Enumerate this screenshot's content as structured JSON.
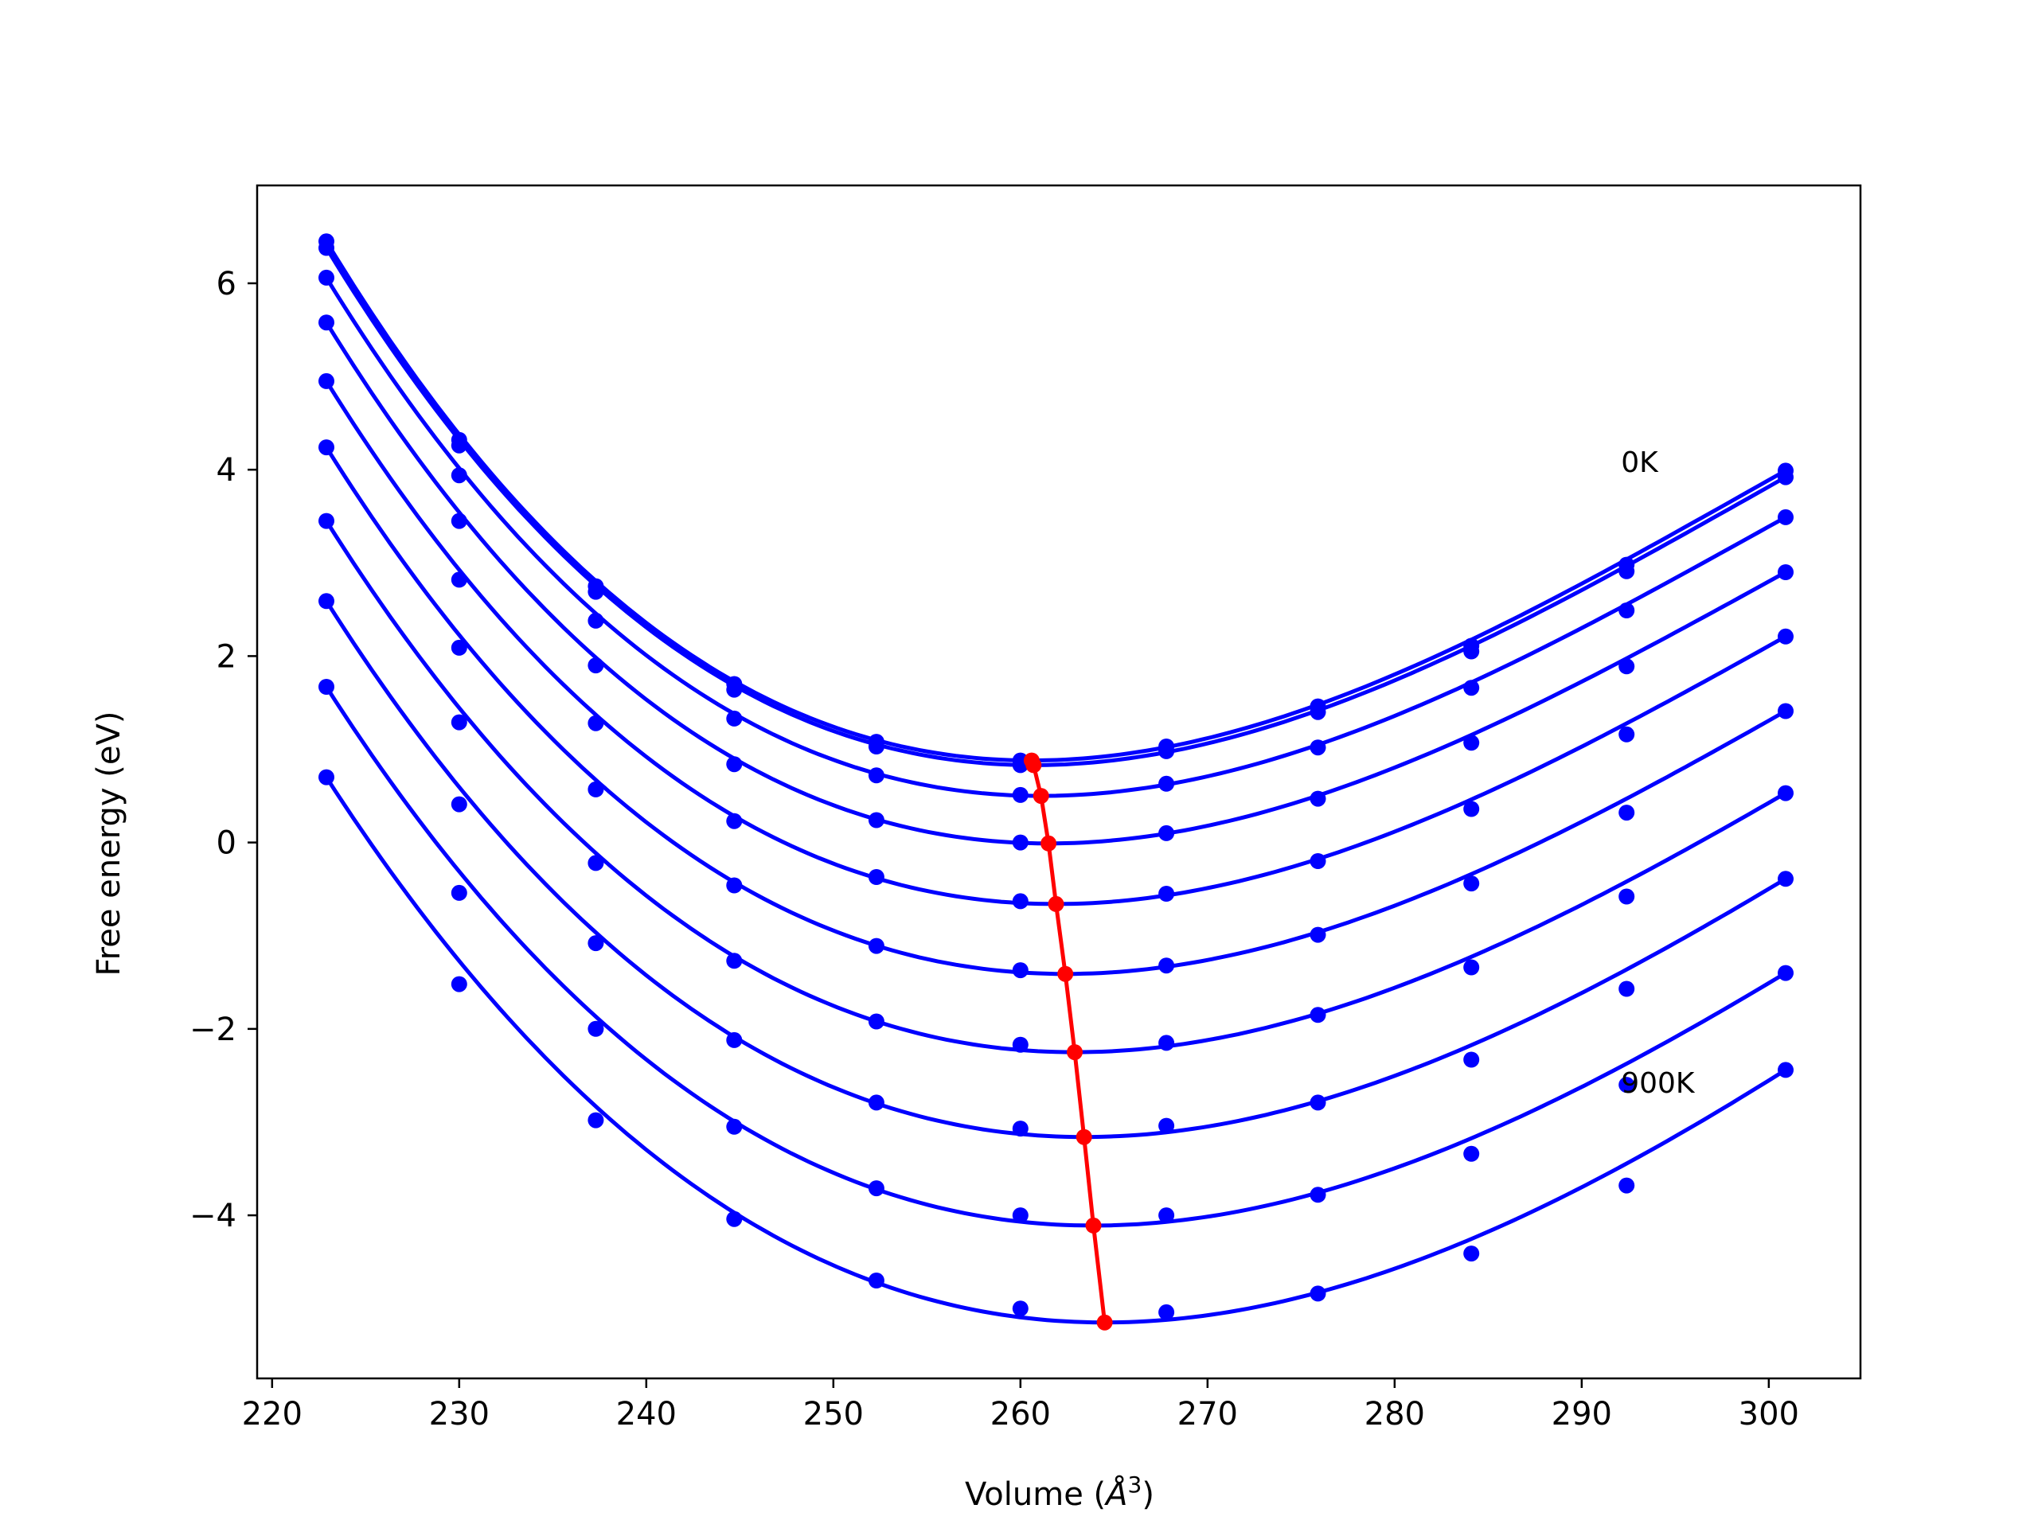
{
  "chart_data": {
    "type": "line",
    "title": "",
    "xlabel": "Volume (",
    "xlabel_unit": "Å",
    "xlabel_exp": "3",
    "xlabel_close": ")",
    "ylabel": "Free energy (eV)",
    "xlim": [
      219.2,
      304.9
    ],
    "ylim": [
      -5.75,
      7.05
    ],
    "xticks": [
      220,
      230,
      240,
      250,
      260,
      270,
      280,
      290,
      300
    ],
    "yticks": [
      -4,
      -2,
      0,
      2,
      4,
      6
    ],
    "ytick_labels": [
      "−4",
      "−2",
      "0",
      "2",
      "4",
      "6"
    ],
    "grid": false,
    "legend": "none",
    "colors": {
      "isotherm": "#0000ff",
      "minimum": "#ff0000"
    },
    "volumes": [
      222.9,
      230.0,
      237.3,
      244.7,
      252.3,
      260.0,
      267.8,
      275.9,
      284.1,
      292.4,
      300.9
    ],
    "series": [
      {
        "energies": [
          6.45,
          4.32,
          2.75,
          1.7,
          1.08,
          0.88,
          1.03,
          1.46,
          2.11,
          2.98,
          3.99
        ],
        "min": [
          260.6,
          0.88
        ]
      },
      {
        "energies": [
          6.38,
          4.26,
          2.69,
          1.64,
          1.03,
          0.83,
          0.98,
          1.4,
          2.05,
          2.91,
          3.92
        ],
        "min": [
          260.7,
          0.83
        ]
      },
      {
        "energies": [
          6.06,
          3.94,
          2.38,
          1.33,
          0.72,
          0.51,
          0.63,
          1.02,
          1.66,
          2.49,
          3.49
        ],
        "min": [
          261.1,
          0.5
        ]
      },
      {
        "energies": [
          5.58,
          3.45,
          1.9,
          0.84,
          0.24,
          0.0,
          0.1,
          0.47,
          1.07,
          1.89,
          2.9
        ],
        "min": [
          261.5,
          -0.01
        ]
      },
      {
        "energies": [
          4.95,
          2.82,
          1.28,
          0.23,
          -0.37,
          -0.63,
          -0.55,
          -0.2,
          0.36,
          1.16,
          2.21
        ],
        "min": [
          261.9,
          -0.66
        ]
      },
      {
        "energies": [
          4.24,
          2.09,
          0.57,
          -0.46,
          -1.11,
          -1.37,
          -1.32,
          -0.99,
          -0.44,
          0.32,
          1.41
        ],
        "min": [
          262.4,
          -1.41
        ]
      },
      {
        "energies": [
          3.45,
          1.29,
          -0.22,
          -1.27,
          -1.92,
          -2.17,
          -2.15,
          -1.85,
          -1.34,
          -0.58,
          0.53
        ],
        "min": [
          262.9,
          -2.25
        ]
      },
      {
        "energies": [
          2.59,
          0.41,
          -1.08,
          -2.12,
          -2.79,
          -3.07,
          -3.04,
          -2.79,
          -2.33,
          -1.57,
          -0.39
        ],
        "min": [
          263.4,
          -3.16
        ]
      },
      {
        "energies": [
          1.67,
          -0.54,
          -2.0,
          -3.05,
          -3.71,
          -4.0,
          -4.0,
          -3.78,
          -3.34,
          -2.6,
          -1.4
        ],
        "min": [
          263.9,
          -4.11
        ]
      },
      {
        "energies": [
          0.7,
          -1.52,
          -2.98,
          -4.04,
          -4.7,
          -5.0,
          -5.04,
          -4.84,
          -4.41,
          -3.68,
          -2.44
        ],
        "min": [
          264.5,
          -5.15
        ]
      }
    ],
    "annotations": [
      {
        "text": "0K",
        "x": 292.1,
        "y": 4.08
      },
      {
        "text": "900K",
        "x": 292.1,
        "y": -2.58
      }
    ]
  }
}
